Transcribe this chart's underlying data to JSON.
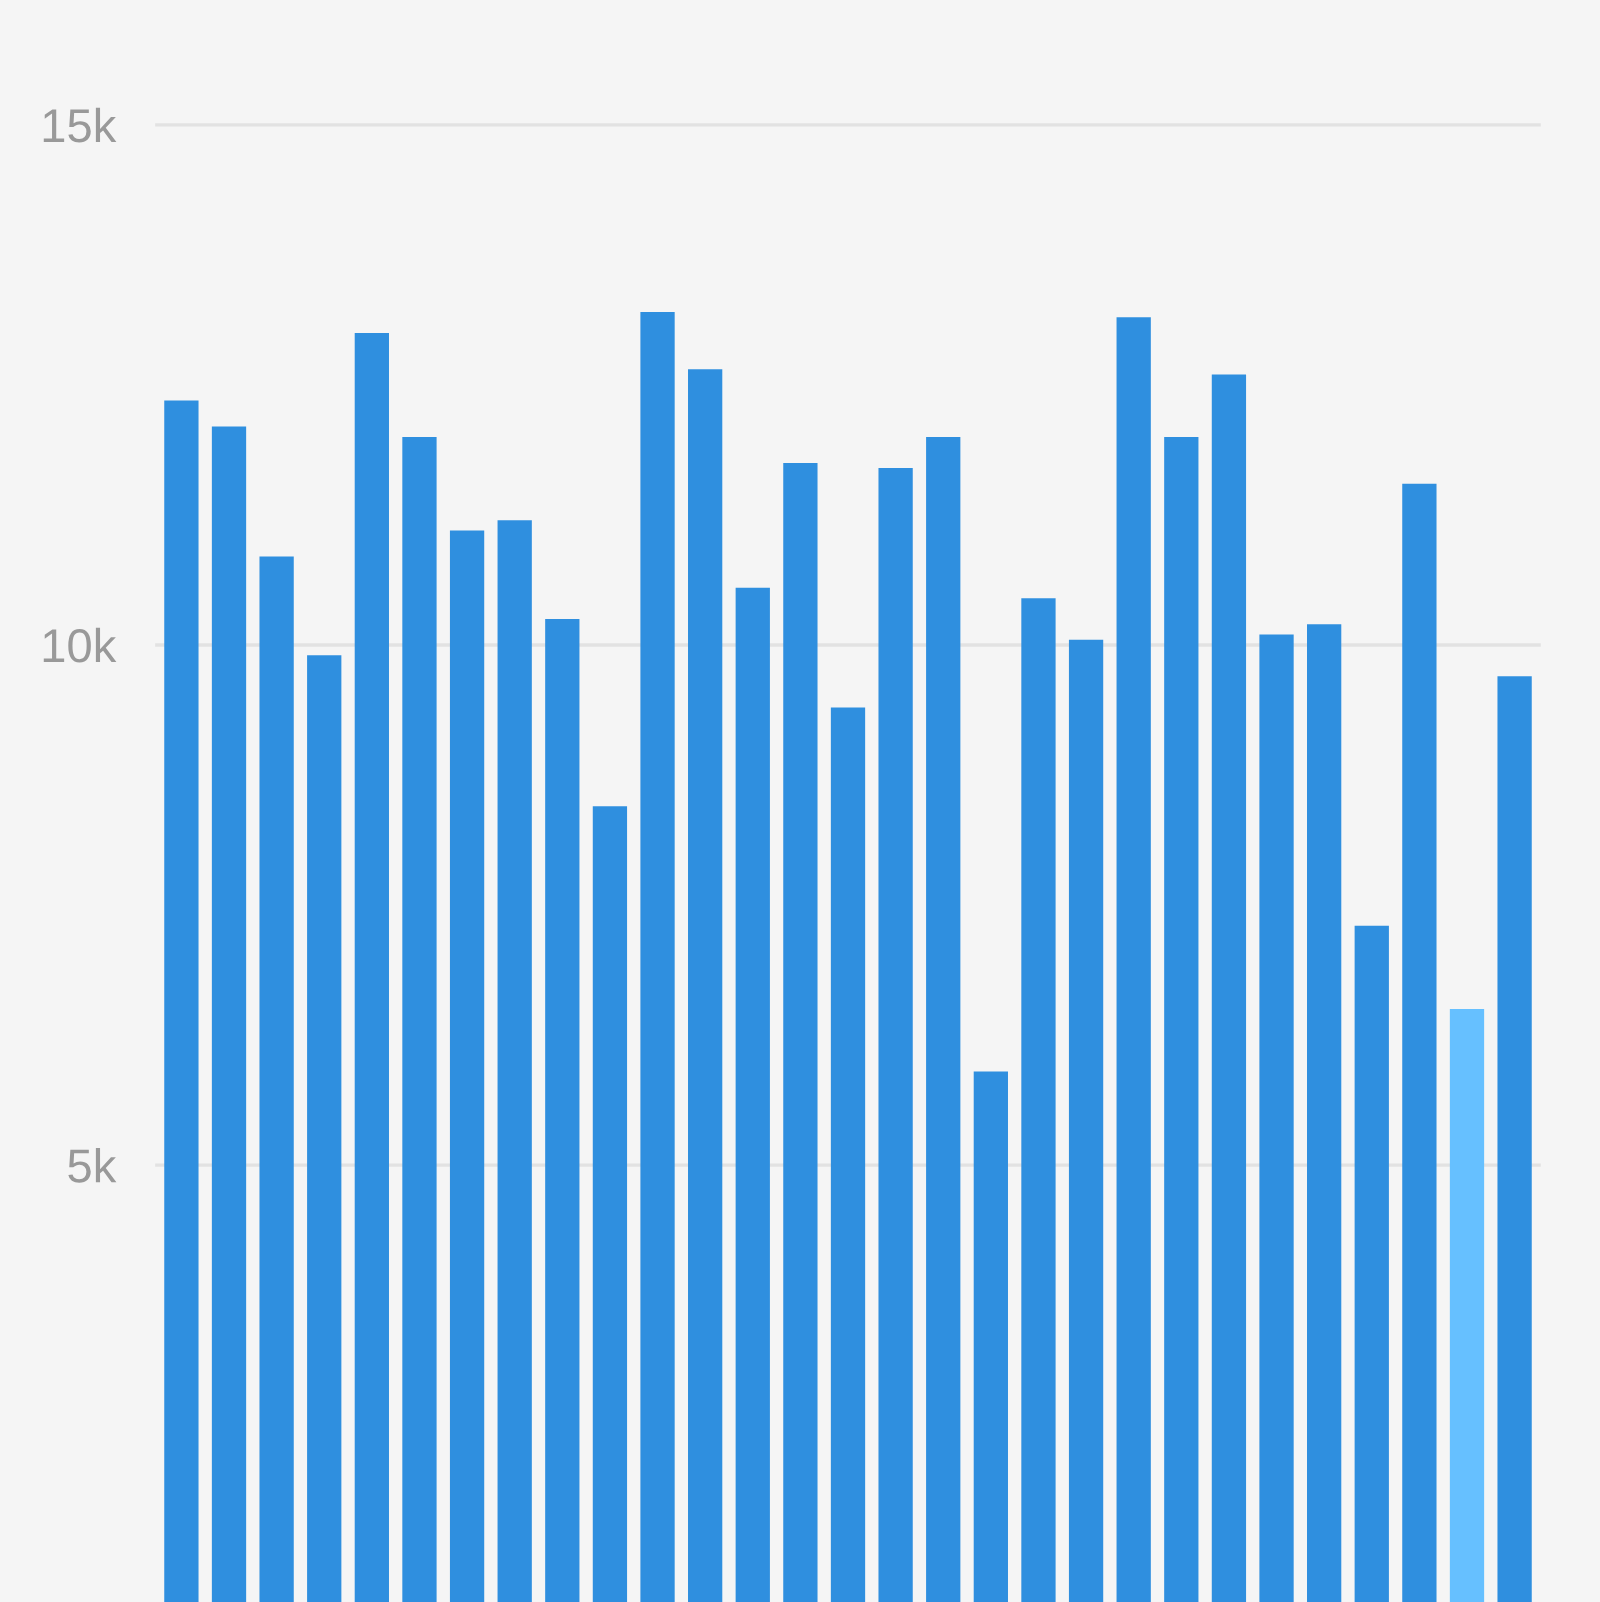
{
  "chart_data": {
    "type": "bar",
    "categories": [
      null,
      null,
      null,
      null,
      null,
      null,
      null,
      null,
      null,
      null,
      null,
      null,
      null,
      null,
      null,
      null,
      null,
      null,
      null,
      null,
      null,
      null,
      null,
      null,
      null,
      null,
      null,
      null,
      null
    ],
    "values": [
      12350,
      12100,
      10850,
      9900,
      13000,
      12000,
      11100,
      11200,
      10250,
      8450,
      13200,
      12650,
      10550,
      11750,
      9400,
      11700,
      12000,
      5900,
      10450,
      10050,
      13150,
      12000,
      12600,
      10100,
      10200,
      7300,
      11550,
      6500,
      9700
    ],
    "colors": [
      "#2f8fdf",
      "#2f8fdf",
      "#2f8fdf",
      "#2f8fdf",
      "#2f8fdf",
      "#2f8fdf",
      "#2f8fdf",
      "#2f8fdf",
      "#2f8fdf",
      "#2f8fdf",
      "#2f8fdf",
      "#2f8fdf",
      "#2f8fdf",
      "#2f8fdf",
      "#2f8fdf",
      "#2f8fdf",
      "#2f8fdf",
      "#2f8fdf",
      "#2f8fdf",
      "#2f8fdf",
      "#2f8fdf",
      "#2f8fdf",
      "#2f8fdf",
      "#2f8fdf",
      "#2f8fdf",
      "#2f8fdf",
      "#2f8fdf",
      "#66c0ff",
      "#2f8fdf"
    ],
    "ylim": [
      800,
      16200
    ],
    "yticks": [
      {
        "value": 5000,
        "label": "5k"
      },
      {
        "value": 10000,
        "label": "10k"
      },
      {
        "value": 15000,
        "label": "15k"
      }
    ],
    "grid": "y",
    "tick_labels": "y"
  }
}
